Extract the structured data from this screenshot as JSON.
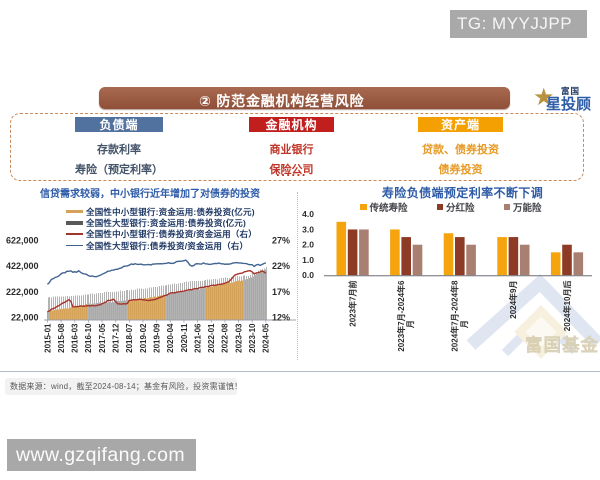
{
  "watermark_top": {
    "label": "TG: MYYJJPP",
    "bg": "#A9A9A9",
    "text_color": "#F5F5F5"
  },
  "brand_logo": {
    "star_icon": "star",
    "brand_small": "富国",
    "brand_big": "星投顾",
    "gold": "#B8923F",
    "blue": "#2E5CA8",
    "navy": "#1F3864"
  },
  "banner": {
    "title": "② 防范金融机构经营风险",
    "bg_top": "#A86A50",
    "bg_bottom": "#8F4F38"
  },
  "flow": {
    "border_color": "#C8895C",
    "columns": [
      {
        "header": "负债端",
        "header_bg": "#51719E",
        "item_color": "#44546A",
        "items": [
          "存款利率",
          "寿险（预定利率）"
        ]
      },
      {
        "header": "金融机构",
        "header_bg": "#C11E1E",
        "item_color": "#C03528",
        "items": [
          "商业银行",
          "保险公司"
        ],
        "ellipsis": "......"
      },
      {
        "header": "资产端",
        "header_bg": "#F5A002",
        "item_color": "#E79A26",
        "items": [
          "贷款、债券投资",
          "债券投资"
        ]
      }
    ]
  },
  "chart_data": [
    {
      "type": "bar+line",
      "title": "信贷需求较弱，中小银行近年增加了对债券的投资",
      "title_color": "#2D5BA7",
      "x": [
        "2015-01",
        "2015-02",
        "2015-03",
        "2015-04",
        "2015-05",
        "2015-06",
        "2015-07",
        "2015-08",
        "2015-09",
        "2015-10",
        "2015-11",
        "2015-12",
        "2016-01",
        "2016-02",
        "2016-03",
        "2016-04",
        "2016-05",
        "2016-06",
        "2016-07",
        "2016-08",
        "2016-09",
        "2016-10",
        "2016-11",
        "2016-12",
        "2017-01",
        "2017-02",
        "2017-03",
        "2017-04",
        "2017-05",
        "2017-06",
        "2017-07",
        "2017-08",
        "2017-09",
        "2017-10",
        "2017-11",
        "2017-12",
        "2018-01",
        "2018-02",
        "2018-03",
        "2018-04",
        "2018-05",
        "2018-06",
        "2018-07",
        "2018-08",
        "2018-09",
        "2018-10",
        "2018-11",
        "2018-12",
        "2019-01",
        "2019-02",
        "2019-03",
        "2019-04",
        "2019-05",
        "2019-06",
        "2019-07",
        "2019-08",
        "2019-09",
        "2019-10",
        "2019-11",
        "2019-12",
        "2020-01",
        "2020-02",
        "2020-03",
        "2020-04",
        "2020-05",
        "2020-06",
        "2020-07",
        "2020-08",
        "2020-09",
        "2020-10",
        "2020-11",
        "2020-12",
        "2021-01",
        "2021-02",
        "2021-03",
        "2021-04",
        "2021-05",
        "2021-06",
        "2021-07",
        "2021-08",
        "2021-09",
        "2021-10",
        "2021-11",
        "2021-12",
        "2022-01",
        "2022-02",
        "2022-03",
        "2022-04",
        "2022-05",
        "2022-06",
        "2022-07",
        "2022-08",
        "2022-09",
        "2022-10",
        "2022-11",
        "2022-12",
        "2023-01",
        "2023-02",
        "2023-03",
        "2023-04",
        "2023-05",
        "2023-06",
        "2023-07",
        "2023-08",
        "2023-09",
        "2023-10",
        "2023-11",
        "2023-12",
        "2024-01",
        "2024-02",
        "2024-03",
        "2024-04",
        "2024-05"
      ],
      "x_ticks": [
        "2015-01",
        "2015-08",
        "2016-03",
        "2016-10",
        "2017-05",
        "2017-12",
        "2018-07",
        "2019-02",
        "2019-09",
        "2020-04",
        "2020-11",
        "2021-06",
        "2022-01",
        "2022-08",
        "2023-03",
        "2023-10",
        "2024-05"
      ],
      "y_left_ticks": [
        {
          "label": "622,000",
          "value": 622000
        },
        {
          "label": "422,000",
          "value": 422000
        },
        {
          "label": "222,000",
          "value": 222000
        },
        {
          "label": "22,000",
          "value": 22000
        }
      ],
      "y_right_ticks": [
        {
          "label": "27%",
          "value": 27
        },
        {
          "label": "22%",
          "value": 22
        },
        {
          "label": "17%",
          "value": 17
        },
        {
          "label": "12%",
          "value": 12
        }
      ],
      "series": [
        {
          "name": "全国性中小型银行:资金运用:债券投资(亿元)",
          "kind": "bar",
          "axis": "left",
          "color": "#D4A258",
          "values": [
            71500,
            72500,
            78500,
            76500,
            82500,
            83000,
            83000,
            89000,
            87500,
            92500,
            92000,
            94500,
            99500,
            105500,
            102500,
            106000,
            112000,
            117500,
            117000,
            118500,
            126000,
            121000,
            130500,
            128500,
            130000,
            131000,
            134000,
            139500,
            135500,
            140000,
            141500,
            140500,
            143500,
            141000,
            142000,
            144500,
            149500,
            149000,
            149500,
            153500,
            154000,
            154500,
            160000,
            160500,
            158500,
            163000,
            164000,
            168500,
            169000,
            167500,
            175500,
            171000,
            176000,
            181000,
            178500,
            184000,
            182500,
            190000,
            193500,
            194000,
            199000,
            198500,
            205500,
            209000,
            211000,
            212000,
            217500,
            220500,
            219000,
            222500,
            220000,
            227500,
            229000,
            235000,
            236000,
            235000,
            238500,
            243500,
            241000,
            247500,
            248000,
            250500,
            253000,
            261500,
            259000,
            263000,
            267500,
            274500,
            271500,
            277500,
            281500,
            287000,
            290000,
            293500,
            292000,
            296000,
            299000,
            306000,
            309500,
            306000,
            309500,
            313000,
            316000,
            321000,
            329500,
            334500,
            340500,
            351500,
            359000,
            369500,
            381500,
            388500,
            396000
          ]
        },
        {
          "name": "全国性大型银行:资金运用:债券投资(亿元)",
          "kind": "bar",
          "axis": "left",
          "color": "#B3B3B3",
          "legend_color": "#595959",
          "values": [
            179000,
            180500,
            177000,
            184500,
            185000,
            187000,
            187500,
            185500,
            186500,
            185500,
            190500,
            187500,
            188500,
            191000,
            192500,
            195000,
            194500,
            195500,
            198000,
            199500,
            203000,
            201500,
            210000,
            209500,
            207000,
            209500,
            212000,
            213500,
            213000,
            220500,
            223000,
            220000,
            222000,
            220000,
            222000,
            225000,
            226000,
            232000,
            228000,
            228500,
            237500,
            235500,
            233500,
            238500,
            235500,
            241000,
            246000,
            246500,
            246500,
            245000,
            248000,
            248500,
            255500,
            255500,
            259500,
            258000,
            259500,
            266000,
            269500,
            270500,
            272500,
            276500,
            280000,
            280000,
            284000,
            285000,
            284000,
            286000,
            290000,
            292000,
            297500,
            301500,
            299500,
            305000,
            307000,
            308000,
            305000,
            305500,
            307000,
            308000,
            309500,
            314500,
            318000,
            319000,
            318000,
            321000,
            323500,
            319500,
            326000,
            329500,
            330500,
            331500,
            331000,
            330500,
            337000,
            335000,
            340500,
            343500,
            340500,
            342000,
            348000,
            347500,
            345000,
            346000,
            353500,
            366500,
            373000,
            375000,
            387500,
            396000,
            400500,
            405000,
            413500
          ]
        },
        {
          "name": "全国性中小型银行:债券投资/资金运用（右）",
          "kind": "line",
          "axis": "right",
          "color": "#A4342A",
          "values": [
            13.14,
            13.3,
            13.63,
            13.75,
            13.9,
            14.19,
            14.34,
            14.63,
            14.85,
            14.99,
            15.23,
            15.47,
            15.16,
            14.11,
            14.09,
            14.15,
            14.14,
            14.28,
            14.2,
            14.23,
            14.26,
            14.32,
            14.26,
            14.35,
            14.29,
            14.31,
            14.44,
            14.49,
            14.69,
            14.85,
            15.02,
            15.35,
            15.31,
            15.43,
            15.54,
            15.11,
            14.67,
            14.65,
            14.61,
            14.7,
            14.64,
            14.76,
            15.36,
            15.38,
            15.48,
            15.45,
            15.48,
            15.52,
            15.57,
            15.44,
            15.42,
            15.35,
            15.3,
            15.41,
            15.44,
            15.53,
            15.6,
            15.82,
            15.93,
            16.11,
            16.27,
            16.33,
            16.54,
            16.77,
            16.83,
            16.8,
            16.88,
            17.01,
            17.03,
            17.11,
            17.13,
            17.28,
            17.35,
            17.44,
            17.39,
            17.56,
            17.63,
            17.61,
            17.79,
            17.87,
            17.83,
            18.02,
            18.01,
            18.1,
            18.25,
            18.29,
            18.25,
            18.36,
            18.44,
            18.47,
            18.55,
            18.67,
            18.84,
            18.97,
            19.31,
            19.79,
            20.22,
            20.37,
            20.52,
            20.6,
            20.63,
            20.88,
            20.95,
            21.08,
            21.09,
            20.86,
            20.48,
            20.64,
            20.71,
            20.84,
            21.04,
            20.87,
            20.6
          ]
        },
        {
          "name": "全国性大型银行:债券投资/资金运用（右）",
          "kind": "line",
          "axis": "right",
          "color": "#41648F",
          "values": [
            18.44,
            18.82,
            19.4,
            19.55,
            19.81,
            19.9,
            20.13,
            20.51,
            20.68,
            20.7,
            21.01,
            20.98,
            21.07,
            20.8,
            20.89,
            20.8,
            21.09,
            20.79,
            20.56,
            20.46,
            20.4,
            20.14,
            20.01,
            20.07,
            19.97,
            19.91,
            20.07,
            20.19,
            20.4,
            20.59,
            20.75,
            21.0,
            21.02,
            21.2,
            21.22,
            21.36,
            21.38,
            21.57,
            21.63,
            21.93,
            22.01,
            22.03,
            22.19,
            22.4,
            22.31,
            22.45,
            22.33,
            22.32,
            22.38,
            22.25,
            22.25,
            22.27,
            22.32,
            22.21,
            22.38,
            22.4,
            22.43,
            22.43,
            22.46,
            22.44,
            22.51,
            22.5,
            22.66,
            22.54,
            22.52,
            22.58,
            22.83,
            22.91,
            22.94,
            22.95,
            23.04,
            23.15,
            22.74,
            22.22,
            21.99,
            22.09,
            22.41,
            22.46,
            22.41,
            22.39,
            22.61,
            22.43,
            22.42,
            22.31,
            22.37,
            22.44,
            22.5,
            22.48,
            22.6,
            22.43,
            22.44,
            22.35,
            22.38,
            22.37,
            22.44,
            22.58,
            22.64,
            22.67,
            22.61,
            22.61,
            22.54,
            22.5,
            22.49,
            22.32,
            22.26,
            22.27,
            21.92,
            22.2,
            22.33,
            22.14,
            22.28,
            22.49,
            22.63
          ]
        }
      ]
    },
    {
      "type": "bar",
      "title": "寿险负债端预定利率不断下调",
      "title_color": "#2D5BA7",
      "categories": [
        {
          "label": "2023年7月前",
          "lines": [
            "2023年7月前"
          ]
        },
        {
          "label": "2023年7月-2024年6月",
          "lines": [
            "2023年7月-2024年6",
            "月"
          ]
        },
        {
          "label": "2024年7月-2024年8月",
          "lines": [
            "2024年7月-2024年8",
            "月"
          ]
        },
        {
          "label": "2024年9月",
          "lines": [
            "2024年9月"
          ]
        },
        {
          "label": "2024年10月后",
          "lines": [
            "2024年10月后"
          ]
        }
      ],
      "y_ticks": [
        {
          "label": "0.0",
          "value": 0
        },
        {
          "label": "1.0",
          "value": 1
        },
        {
          "label": "2.0",
          "value": 2
        },
        {
          "label": "3.0",
          "value": 3
        },
        {
          "label": "4.0",
          "value": 4
        }
      ],
      "ylim": [
        0,
        4
      ],
      "series": [
        {
          "name": "传统寿险",
          "color": "#F5A40D",
          "values": [
            3.5,
            3.0,
            2.75,
            2.5,
            1.5
          ]
        },
        {
          "name": "分红险",
          "color": "#8E3B26",
          "values": [
            3.0,
            2.5,
            2.5,
            2.5,
            2.0
          ]
        },
        {
          "name": "万能险",
          "color": "#A97F72",
          "values": [
            3.0,
            2.0,
            2.0,
            2.0,
            1.5
          ]
        }
      ]
    }
  ],
  "footer": {
    "note": "数据来源：wind，截至2024-08-14；基金有风险，投资需谨慎！"
  },
  "watermark_bottom": {
    "label": "www.gzqifang.com",
    "bg": "#A8A8A8"
  },
  "watermark_fund": {
    "label": "富国基金"
  }
}
